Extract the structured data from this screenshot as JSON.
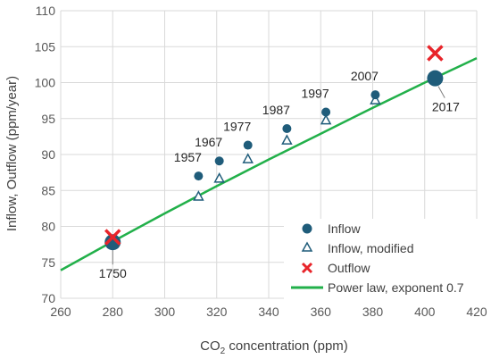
{
  "chart_data": {
    "type": "scatter",
    "xlabel_main": "CO",
    "xlabel_sub": "2",
    "xlabel_rest": " concentration (ppm)",
    "ylabel": "Inflow, Outflow (ppm/year)",
    "xlim": [
      260,
      420
    ],
    "ylim": [
      70,
      110
    ],
    "xticks": [
      260,
      280,
      300,
      320,
      340,
      360,
      380,
      400,
      420
    ],
    "yticks": [
      70,
      75,
      80,
      85,
      90,
      95,
      100,
      105,
      110
    ],
    "grid": true,
    "legend_position": "bottom-right",
    "colors": {
      "inflow": "#1f5c7a",
      "modified": "#1f5c7a",
      "outflow": "#e8242a",
      "power_law": "#22b04a",
      "grid": "#d9d9d9",
      "leader": "#7f7f7f"
    },
    "series": [
      {
        "name": "Inflow",
        "marker": "circle",
        "points": [
          {
            "x": 280,
            "y": 77.8,
            "big": true
          },
          {
            "x": 313,
            "y": 87.0
          },
          {
            "x": 321,
            "y": 89.1
          },
          {
            "x": 332,
            "y": 91.3
          },
          {
            "x": 347,
            "y": 93.6
          },
          {
            "x": 362,
            "y": 95.9
          },
          {
            "x": 381,
            "y": 98.3
          },
          {
            "x": 404,
            "y": 100.6,
            "big": true
          }
        ]
      },
      {
        "name": "Inflow, modified",
        "marker": "triangle-open",
        "points": [
          {
            "x": 313,
            "y": 84.2
          },
          {
            "x": 321,
            "y": 86.7
          },
          {
            "x": 332,
            "y": 89.4
          },
          {
            "x": 347,
            "y": 92.0
          },
          {
            "x": 362,
            "y": 94.8
          },
          {
            "x": 381,
            "y": 97.6
          }
        ]
      },
      {
        "name": "Outflow",
        "marker": "x",
        "points": [
          {
            "x": 280,
            "y": 78.5
          },
          {
            "x": 404,
            "y": 104.1
          }
        ]
      },
      {
        "name": "Power law, exponent 0.7",
        "marker": "line",
        "points": [
          {
            "x": 260,
            "y": 73.9
          },
          {
            "x": 280,
            "y": 77.9
          },
          {
            "x": 300,
            "y": 81.8
          },
          {
            "x": 320,
            "y": 85.6
          },
          {
            "x": 340,
            "y": 89.3
          },
          {
            "x": 360,
            "y": 92.9
          },
          {
            "x": 380,
            "y": 96.5
          },
          {
            "x": 400,
            "y": 100.0
          },
          {
            "x": 420,
            "y": 103.4
          }
        ]
      }
    ],
    "annotations": [
      {
        "text": "1750",
        "x": 280,
        "y": 77.8
      },
      {
        "text": "1957",
        "x": 313,
        "y": 87.0
      },
      {
        "text": "1967",
        "x": 321,
        "y": 89.1
      },
      {
        "text": "1977",
        "x": 332,
        "y": 91.3
      },
      {
        "text": "1987",
        "x": 347,
        "y": 93.6
      },
      {
        "text": "1997",
        "x": 362,
        "y": 95.9
      },
      {
        "text": "2007",
        "x": 381,
        "y": 98.3
      },
      {
        "text": "2017",
        "x": 404,
        "y": 100.6
      }
    ]
  }
}
